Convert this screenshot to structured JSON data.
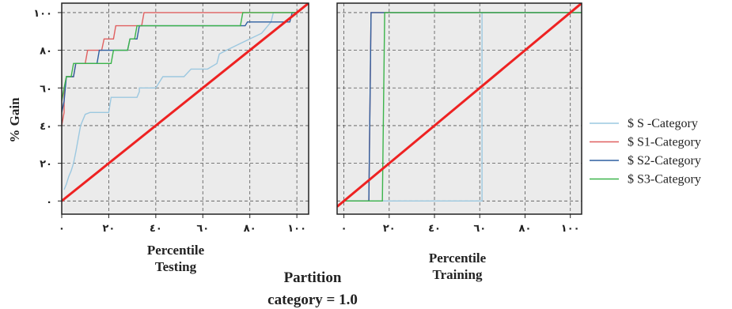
{
  "chart_data": [
    {
      "type": "line",
      "panel": "testing",
      "xlabel_line1": "Percentile",
      "xlabel_line2": "Testing",
      "ylabel": "% Gain",
      "xlim": [
        0,
        105
      ],
      "ylim": [
        -7,
        105
      ],
      "xticks": [
        0,
        20,
        40,
        60,
        80,
        100
      ],
      "xtick_labels": [
        "٠",
        "٢٠",
        "٤٠",
        "٦٠",
        "٨٠",
        "١٠٠"
      ],
      "yticks": [
        0,
        20,
        40,
        60,
        80,
        100
      ],
      "ytick_labels": [
        "٠",
        "٢٠",
        "٤٠",
        "٦٠",
        "٨٠",
        "١٠٠"
      ],
      "grid": true,
      "series": [
        {
          "name": "$ S  -Category",
          "color": "#9cc8e0",
          "points": [
            [
              1,
              6
            ],
            [
              2,
              9
            ],
            [
              3,
              13
            ],
            [
              4,
              16
            ],
            [
              5,
              20
            ],
            [
              6,
              26
            ],
            [
              7,
              33
            ],
            [
              8,
              40
            ],
            [
              10,
              46
            ],
            [
              12,
              47
            ],
            [
              20,
              47
            ],
            [
              21,
              55
            ],
            [
              32,
              55
            ],
            [
              33,
              58
            ],
            [
              33,
              60
            ],
            [
              40,
              60
            ],
            [
              41,
              62
            ],
            [
              43,
              66
            ],
            [
              52,
              66
            ],
            [
              55,
              70
            ],
            [
              62,
              70
            ],
            [
              66,
              73
            ],
            [
              67,
              78
            ],
            [
              70,
              80
            ],
            [
              75,
              83
            ],
            [
              85,
              89
            ],
            [
              89,
              95
            ],
            [
              90,
              100
            ],
            [
              100,
              100
            ]
          ]
        },
        {
          "name": "$ S1-Category",
          "color": "#e06060",
          "points": [
            [
              0,
              40
            ],
            [
              1,
              47
            ],
            [
              1,
              59
            ],
            [
              2,
              66
            ],
            [
              5,
              66
            ],
            [
              6,
              73
            ],
            [
              10,
              73
            ],
            [
              11,
              80
            ],
            [
              17,
              80
            ],
            [
              18,
              86
            ],
            [
              22,
              86
            ],
            [
              23,
              93
            ],
            [
              34,
              93
            ],
            [
              35,
              100
            ],
            [
              100,
              100
            ]
          ]
        },
        {
          "name": "$ S2-Category",
          "color": "#2e5fa0",
          "points": [
            [
              0,
              47
            ],
            [
              1,
              53
            ],
            [
              2,
              66
            ],
            [
              5,
              66
            ],
            [
              6,
              73
            ],
            [
              15,
              73
            ],
            [
              16,
              80
            ],
            [
              28,
              80
            ],
            [
              29,
              86
            ],
            [
              32,
              86
            ],
            [
              33,
              93
            ],
            [
              78,
              93
            ],
            [
              79,
              95
            ],
            [
              97,
              95
            ],
            [
              98,
              100
            ],
            [
              100,
              100
            ]
          ]
        },
        {
          "name": "$ S3-Category",
          "color": "#3cb44b",
          "points": [
            [
              0,
              53
            ],
            [
              1,
              60
            ],
            [
              2,
              66
            ],
            [
              4,
              66
            ],
            [
              5,
              73
            ],
            [
              21,
              73
            ],
            [
              22,
              80
            ],
            [
              28,
              80
            ],
            [
              29,
              86
            ],
            [
              31,
              86
            ],
            [
              32,
              93
            ],
            [
              76,
              93
            ],
            [
              77,
              100
            ],
            [
              100,
              100
            ]
          ]
        },
        {
          "name": "baseline",
          "color": "#ee2222",
          "points": [
            [
              -5,
              -5
            ],
            [
              105,
              105
            ]
          ]
        }
      ]
    },
    {
      "type": "line",
      "panel": "training",
      "xlabel_line1": "Percentile",
      "xlabel_line2": "Training",
      "xlim": [
        -3,
        105
      ],
      "ylim": [
        -7,
        105
      ],
      "xticks": [
        0,
        20,
        40,
        60,
        80,
        100
      ],
      "xtick_labels": [
        "٠",
        "٢٠",
        "٤٠",
        "٦٠",
        "٨٠",
        "١٠٠"
      ],
      "grid": true,
      "series": [
        {
          "name": "$ S  -Category",
          "color": "#9cc8e0",
          "points": [
            [
              0,
              0
            ],
            [
              61,
              0
            ],
            [
              61,
              100
            ],
            [
              105,
              100
            ]
          ]
        },
        {
          "name": "$ S1-Category",
          "color": "#e06060",
          "points": [
            [
              0,
              0
            ],
            [
              11,
              0
            ],
            [
              12,
              100
            ],
            [
              105,
              100
            ]
          ]
        },
        {
          "name": "$ S2-Category",
          "color": "#2e5fa0",
          "points": [
            [
              0,
              0
            ],
            [
              11,
              0
            ],
            [
              12,
              100
            ],
            [
              105,
              100
            ]
          ]
        },
        {
          "name": "$ S3-Category",
          "color": "#3cb44b",
          "points": [
            [
              0,
              0
            ],
            [
              17,
              0
            ],
            [
              18,
              100
            ],
            [
              105,
              100
            ]
          ]
        },
        {
          "name": "baseline",
          "color": "#ee2222",
          "points": [
            [
              -3,
              -3
            ],
            [
              105,
              105
            ]
          ]
        }
      ]
    }
  ],
  "legend": [
    {
      "label": "$ S  -Category",
      "color": "#9cc8e0"
    },
    {
      "label": "$ S1-Category",
      "color": "#e06060"
    },
    {
      "label": "$ S2-Category",
      "color": "#2e5fa0"
    },
    {
      "label": "$ S3-Category",
      "color": "#3cb44b"
    }
  ],
  "caption_line1": "Partition",
  "caption_line2": "category = 1.0"
}
